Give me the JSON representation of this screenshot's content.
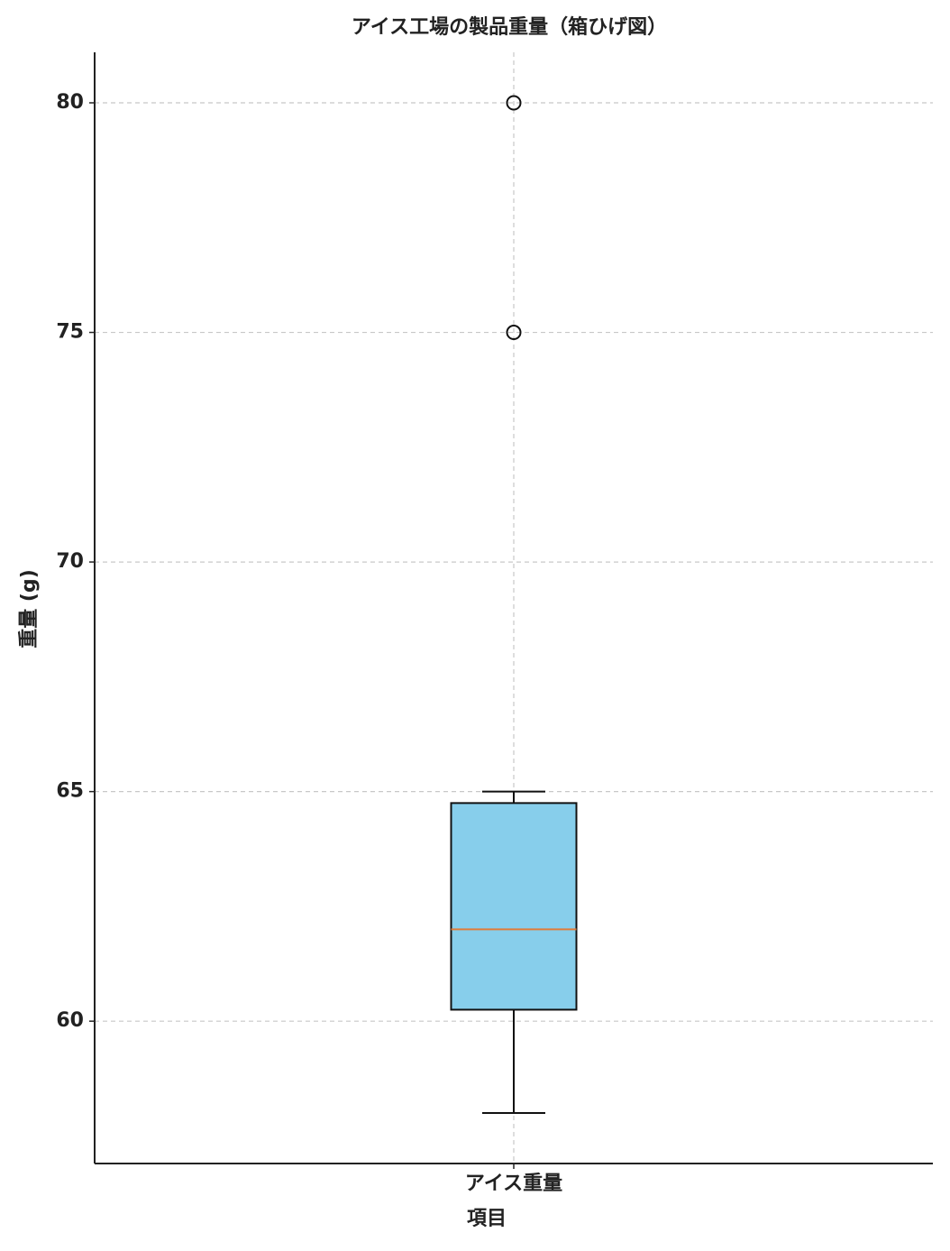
{
  "chart_data": {
    "type": "box",
    "title": "アイス工場の製品重量（箱ひげ図）",
    "xlabel": "項目",
    "ylabel": "重量 (g)",
    "categories": [
      "アイス重量"
    ],
    "boxes": [
      {
        "min": 58,
        "q1": 60.25,
        "median": 62,
        "q3": 64.75,
        "max": 65,
        "outliers": [
          75,
          80
        ]
      }
    ],
    "color": "#87ceeb",
    "median_color": "#e07b39",
    "ylim": [
      56.9,
      81.1
    ],
    "yticks": [
      60,
      65,
      70,
      75,
      80
    ],
    "grid": true
  }
}
